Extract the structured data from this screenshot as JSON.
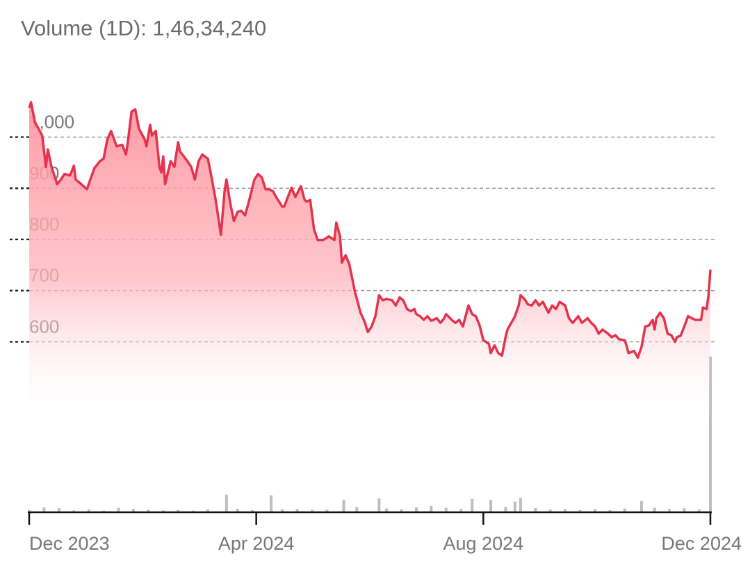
{
  "chart_data": {
    "type": "line",
    "title": "Volume (1D): 1,46,34,240",
    "x": [
      0,
      1,
      3,
      7,
      9,
      10,
      12,
      15,
      17,
      19,
      22,
      24,
      25,
      28,
      31,
      35,
      38,
      40,
      42,
      44,
      47,
      50,
      52,
      53,
      55,
      57,
      59,
      62,
      63,
      65,
      66,
      68,
      70,
      71,
      72,
      73,
      76,
      78,
      80,
      81,
      85,
      87,
      89,
      91,
      93,
      96,
      98,
      100,
      103,
      105,
      106,
      108,
      110,
      112,
      114,
      116,
      118,
      121,
      123,
      125,
      127,
      129,
      131,
      133,
      136,
      137,
      139,
      141,
      143,
      146,
      148,
      149,
      151,
      153,
      155,
      158,
      161,
      164,
      165,
      167,
      168,
      170,
      172,
      175,
      178,
      180,
      182,
      184,
      186,
      188,
      190,
      192,
      195,
      197,
      199,
      201,
      203,
      205,
      207,
      208,
      210,
      212,
      214,
      216,
      219,
      221,
      223,
      224,
      227,
      229,
      231,
      233,
      235,
      236,
      238,
      240,
      242,
      244,
      247,
      248,
      250,
      252,
      254,
      256,
      257,
      259,
      261,
      263,
      264,
      266,
      268,
      270,
      272,
      274,
      276,
      278,
      279,
      281,
      283,
      285,
      288,
      290,
      292,
      295,
      297,
      300,
      302,
      304,
      306,
      308,
      311,
      313,
      315,
      317,
      320,
      321,
      322,
      325,
      327,
      329,
      331,
      333,
      335,
      336,
      337,
      339,
      341,
      343,
      345,
      347,
      348,
      350,
      352,
      354,
      356,
      358,
      361,
      362,
      364,
      365,
      366
    ],
    "series": [
      {
        "color": "#e4334c",
        "values": [
          1057,
          1068,
          1030,
          1003,
          942,
          976,
          942,
          908,
          917,
          928,
          925,
          944,
          917,
          908,
          898,
          939,
          953,
          958,
          996,
          1012,
          982,
          985,
          966,
          990,
          1050,
          1054,
          1016,
          996,
          982,
          1024,
          1003,
          1012,
          942,
          931,
          962,
          908,
          953,
          942,
          990,
          972,
          953,
          942,
          917,
          953,
          966,
          958,
          921,
          881,
          809,
          894,
          917,
          871,
          836,
          854,
          856,
          847,
          874,
          917,
          928,
          921,
          898,
          898,
          894,
          881,
          864,
          864,
          883,
          901,
          883,
          904,
          877,
          874,
          877,
          820,
          799,
          799,
          806,
          799,
          833,
          806,
          755,
          769,
          752,
          698,
          657,
          641,
          619,
          630,
          650,
          691,
          681,
          684,
          681,
          671,
          687,
          681,
          664,
          660,
          664,
          654,
          650,
          643,
          650,
          641,
          646,
          637,
          646,
          654,
          643,
          637,
          643,
          630,
          657,
          671,
          654,
          650,
          632,
          603,
          596,
          578,
          593,
          578,
          573,
          610,
          624,
          637,
          650,
          671,
          691,
          684,
          673,
          671,
          681,
          671,
          678,
          664,
          657,
          671,
          664,
          678,
          671,
          646,
          637,
          650,
          637,
          646,
          637,
          630,
          616,
          624,
          616,
          609,
          613,
          605,
          603,
          592,
          578,
          582,
          569,
          590,
          630,
          632,
          643,
          624,
          646,
          657,
          646,
          616,
          613,
          600,
          609,
          612,
          630,
          650,
          646,
          643,
          643,
          667,
          664,
          691,
          741
        ]
      },
      {
        "type": "bar",
        "axis": "y2",
        "color": "#bdbdbd",
        "x": [
          0,
          8,
          16,
          24,
          32,
          40,
          48,
          56,
          64,
          72,
          80,
          88,
          96,
          106,
          112,
          120,
          130,
          136,
          144,
          152,
          160,
          169,
          176,
          188,
          192,
          200,
          208,
          216,
          224,
          232,
          238,
          248,
          256,
          261,
          264,
          272,
          280,
          288,
          296,
          304,
          312,
          320,
          329,
          336,
          344,
          352,
          360,
          366
        ],
        "values": [
          200000,
          450000,
          380000,
          180000,
          250000,
          150000,
          420000,
          300000,
          230000,
          180000,
          200000,
          160000,
          280000,
          1650000,
          320000,
          200000,
          1600000,
          260000,
          300000,
          220000,
          240000,
          1150000,
          500000,
          1300000,
          350000,
          280000,
          450000,
          600000,
          420000,
          300000,
          1250000,
          1150000,
          500000,
          1000000,
          1350000,
          400000,
          250000,
          300000,
          220000,
          280000,
          200000,
          350000,
          1050000,
          420000,
          300000,
          380000,
          250000,
          14634240
        ]
      }
    ],
    "xlim": [
      0,
      366
    ],
    "xticks": [
      {
        "value": 0,
        "label": "Dec 2023"
      },
      {
        "value": 122,
        "label": "Apr 2024"
      },
      {
        "value": 244,
        "label": "Aug 2024"
      },
      {
        "value": 366,
        "label": "Dec 2024"
      }
    ],
    "ylim": [
      267,
      1078
    ],
    "yticks": [
      600,
      700,
      800,
      900,
      {
        "value": 1000,
        "label": "1,000"
      }
    ],
    "y2lim": [
      0,
      39000000
    ],
    "grid": true
  }
}
